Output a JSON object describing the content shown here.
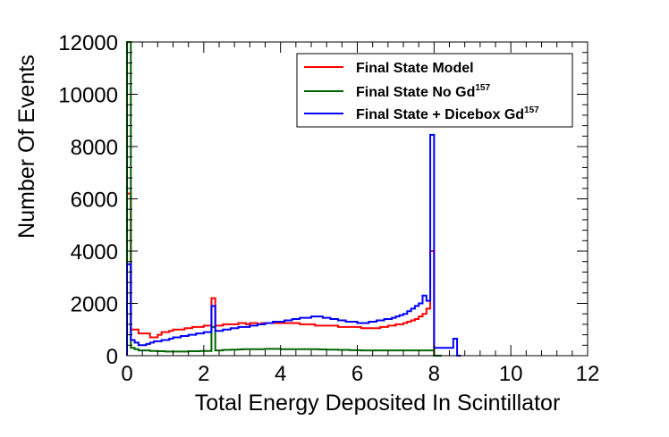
{
  "chart_data": {
    "type": "line",
    "title": "",
    "xlabel": "Total Energy Deposited In Scintillator",
    "ylabel": "Number Of Events",
    "xlim": [
      0,
      12
    ],
    "ylim": [
      0,
      12000
    ],
    "x_ticks": [
      "0",
      "2",
      "4",
      "6",
      "8",
      "10",
      "12"
    ],
    "y_ticks": [
      "0",
      "2000",
      "4000",
      "6000",
      "8000",
      "10000",
      "12000"
    ],
    "legend_position": "top-right",
    "bin_width": 0.1,
    "series": [
      {
        "name": "Final State Model",
        "color": "#ff0000",
        "bins": [
          [
            0.0,
            6200
          ],
          [
            0.1,
            1000
          ],
          [
            0.2,
            1000
          ],
          [
            0.3,
            850
          ],
          [
            0.4,
            850
          ],
          [
            0.5,
            850
          ],
          [
            0.6,
            700
          ],
          [
            0.7,
            700
          ],
          [
            0.8,
            800
          ],
          [
            0.9,
            900
          ],
          [
            1.0,
            900
          ],
          [
            1.1,
            950
          ],
          [
            1.2,
            1000
          ],
          [
            1.3,
            1000
          ],
          [
            1.4,
            1000
          ],
          [
            1.5,
            1050
          ],
          [
            1.6,
            1050
          ],
          [
            1.7,
            1100
          ],
          [
            1.8,
            1100
          ],
          [
            1.9,
            1100
          ],
          [
            2.0,
            1150
          ],
          [
            2.1,
            1150
          ],
          [
            2.2,
            2200
          ],
          [
            2.3,
            1150
          ],
          [
            2.4,
            1150
          ],
          [
            2.5,
            1200
          ],
          [
            2.6,
            1200
          ],
          [
            2.7,
            1200
          ],
          [
            2.8,
            1200
          ],
          [
            2.9,
            1250
          ],
          [
            3.0,
            1250
          ],
          [
            3.1,
            1200
          ],
          [
            3.2,
            1250
          ],
          [
            3.3,
            1250
          ],
          [
            3.4,
            1200
          ],
          [
            3.5,
            1250
          ],
          [
            3.6,
            1250
          ],
          [
            3.7,
            1250
          ],
          [
            3.8,
            1250
          ],
          [
            3.9,
            1250
          ],
          [
            4.0,
            1250
          ],
          [
            4.1,
            1250
          ],
          [
            4.2,
            1250
          ],
          [
            4.3,
            1250
          ],
          [
            4.4,
            1250
          ],
          [
            4.5,
            1200
          ],
          [
            4.6,
            1200
          ],
          [
            4.7,
            1200
          ],
          [
            4.8,
            1200
          ],
          [
            4.9,
            1150
          ],
          [
            5.0,
            1150
          ],
          [
            5.1,
            1150
          ],
          [
            5.2,
            1150
          ],
          [
            5.3,
            1150
          ],
          [
            5.4,
            1150
          ],
          [
            5.5,
            1100
          ],
          [
            5.6,
            1100
          ],
          [
            5.7,
            1100
          ],
          [
            5.8,
            1100
          ],
          [
            5.9,
            1100
          ],
          [
            6.0,
            1100
          ],
          [
            6.1,
            1050
          ],
          [
            6.2,
            1050
          ],
          [
            6.3,
            1050
          ],
          [
            6.4,
            1050
          ],
          [
            6.5,
            1050
          ],
          [
            6.6,
            1100
          ],
          [
            6.7,
            1100
          ],
          [
            6.8,
            1150
          ],
          [
            6.9,
            1150
          ],
          [
            7.0,
            1200
          ],
          [
            7.1,
            1200
          ],
          [
            7.2,
            1250
          ],
          [
            7.3,
            1300
          ],
          [
            7.4,
            1350
          ],
          [
            7.5,
            1400
          ],
          [
            7.6,
            1500
          ],
          [
            7.7,
            1600
          ],
          [
            7.8,
            1800
          ],
          [
            7.9,
            4000
          ],
          [
            8.0,
            0
          ],
          [
            8.1,
            0
          ]
        ]
      },
      {
        "name": "Final State No Gd157",
        "color": "#006400",
        "bins": [
          [
            0.0,
            12000
          ],
          [
            0.1,
            300
          ],
          [
            0.2,
            250
          ],
          [
            0.3,
            200
          ],
          [
            0.4,
            200
          ],
          [
            0.5,
            200
          ],
          [
            0.6,
            180
          ],
          [
            0.7,
            180
          ],
          [
            0.8,
            170
          ],
          [
            0.9,
            170
          ],
          [
            1.0,
            160
          ],
          [
            1.1,
            160
          ],
          [
            1.2,
            160
          ],
          [
            1.3,
            160
          ],
          [
            1.4,
            160
          ],
          [
            1.5,
            160
          ],
          [
            1.6,
            170
          ],
          [
            1.7,
            170
          ],
          [
            1.8,
            170
          ],
          [
            1.9,
            180
          ],
          [
            2.0,
            180
          ],
          [
            2.1,
            180
          ],
          [
            2.2,
            1100
          ],
          [
            2.3,
            200
          ],
          [
            2.4,
            200
          ],
          [
            2.5,
            220
          ],
          [
            2.6,
            220
          ],
          [
            2.7,
            230
          ],
          [
            2.8,
            230
          ],
          [
            2.9,
            240
          ],
          [
            3.0,
            250
          ],
          [
            3.1,
            250
          ],
          [
            3.2,
            250
          ],
          [
            3.3,
            250
          ],
          [
            3.4,
            250
          ],
          [
            3.5,
            250
          ],
          [
            3.6,
            260
          ],
          [
            3.7,
            260
          ],
          [
            3.8,
            260
          ],
          [
            3.9,
            260
          ],
          [
            4.0,
            250
          ],
          [
            4.1,
            250
          ],
          [
            4.2,
            250
          ],
          [
            4.3,
            250
          ],
          [
            4.4,
            250
          ],
          [
            4.5,
            250
          ],
          [
            4.6,
            250
          ],
          [
            4.7,
            250
          ],
          [
            4.8,
            250
          ],
          [
            4.9,
            250
          ],
          [
            5.0,
            240
          ],
          [
            5.1,
            240
          ],
          [
            5.2,
            230
          ],
          [
            5.3,
            230
          ],
          [
            5.4,
            230
          ],
          [
            5.5,
            220
          ],
          [
            5.6,
            220
          ],
          [
            5.7,
            220
          ],
          [
            5.8,
            210
          ],
          [
            5.9,
            210
          ],
          [
            6.0,
            210
          ],
          [
            6.1,
            200
          ],
          [
            6.2,
            200
          ],
          [
            6.3,
            200
          ],
          [
            6.4,
            200
          ],
          [
            6.5,
            200
          ],
          [
            6.6,
            200
          ],
          [
            6.7,
            200
          ],
          [
            6.8,
            200
          ],
          [
            6.9,
            200
          ],
          [
            7.0,
            200
          ],
          [
            7.1,
            200
          ],
          [
            7.2,
            200
          ],
          [
            7.3,
            200
          ],
          [
            7.4,
            200
          ],
          [
            7.5,
            200
          ],
          [
            7.6,
            200
          ],
          [
            7.7,
            200
          ],
          [
            7.8,
            200
          ],
          [
            7.9,
            200
          ],
          [
            8.0,
            0
          ],
          [
            8.1,
            0
          ]
        ]
      },
      {
        "name": "Final State + Dicebox Gd157",
        "color": "#0000ff",
        "bins": [
          [
            0.0,
            3500
          ],
          [
            0.1,
            600
          ],
          [
            0.2,
            500
          ],
          [
            0.3,
            400
          ],
          [
            0.4,
            400
          ],
          [
            0.5,
            450
          ],
          [
            0.6,
            500
          ],
          [
            0.7,
            550
          ],
          [
            0.8,
            550
          ],
          [
            0.9,
            600
          ],
          [
            1.0,
            600
          ],
          [
            1.1,
            650
          ],
          [
            1.2,
            700
          ],
          [
            1.3,
            700
          ],
          [
            1.4,
            750
          ],
          [
            1.5,
            750
          ],
          [
            1.6,
            800
          ],
          [
            1.7,
            800
          ],
          [
            1.8,
            850
          ],
          [
            1.9,
            850
          ],
          [
            2.0,
            900
          ],
          [
            2.1,
            900
          ],
          [
            2.2,
            1900
          ],
          [
            2.3,
            950
          ],
          [
            2.4,
            950
          ],
          [
            2.5,
            1000
          ],
          [
            2.6,
            1000
          ],
          [
            2.7,
            1050
          ],
          [
            2.8,
            1050
          ],
          [
            2.9,
            1100
          ],
          [
            3.0,
            1100
          ],
          [
            3.1,
            1100
          ],
          [
            3.2,
            1150
          ],
          [
            3.3,
            1150
          ],
          [
            3.4,
            1200
          ],
          [
            3.5,
            1200
          ],
          [
            3.6,
            1250
          ],
          [
            3.7,
            1250
          ],
          [
            3.8,
            1300
          ],
          [
            3.9,
            1300
          ],
          [
            4.0,
            1300
          ],
          [
            4.1,
            1350
          ],
          [
            4.2,
            1350
          ],
          [
            4.3,
            1400
          ],
          [
            4.4,
            1400
          ],
          [
            4.5,
            1450
          ],
          [
            4.6,
            1450
          ],
          [
            4.7,
            1450
          ],
          [
            4.8,
            1500
          ],
          [
            4.9,
            1500
          ],
          [
            5.0,
            1500
          ],
          [
            5.1,
            1450
          ],
          [
            5.2,
            1450
          ],
          [
            5.3,
            1400
          ],
          [
            5.4,
            1400
          ],
          [
            5.5,
            1350
          ],
          [
            5.6,
            1350
          ],
          [
            5.7,
            1300
          ],
          [
            5.8,
            1300
          ],
          [
            5.9,
            1300
          ],
          [
            6.0,
            1250
          ],
          [
            6.1,
            1250
          ],
          [
            6.2,
            1250
          ],
          [
            6.3,
            1300
          ],
          [
            6.4,
            1300
          ],
          [
            6.5,
            1350
          ],
          [
            6.6,
            1350
          ],
          [
            6.7,
            1400
          ],
          [
            6.8,
            1400
          ],
          [
            6.9,
            1450
          ],
          [
            7.0,
            1500
          ],
          [
            7.1,
            1550
          ],
          [
            7.2,
            1600
          ],
          [
            7.3,
            1700
          ],
          [
            7.4,
            1800
          ],
          [
            7.5,
            1900
          ],
          [
            7.6,
            2000
          ],
          [
            7.7,
            2300
          ],
          [
            7.8,
            2100
          ],
          [
            7.9,
            8450
          ],
          [
            8.0,
            300
          ],
          [
            8.1,
            300
          ],
          [
            8.2,
            300
          ],
          [
            8.3,
            300
          ],
          [
            8.4,
            300
          ],
          [
            8.5,
            650
          ],
          [
            8.6,
            0
          ]
        ]
      }
    ]
  },
  "legend": {
    "items": [
      {
        "text": "Final State Model",
        "sup": ""
      },
      {
        "text": "Final State No Gd",
        "sup": "157"
      },
      {
        "text": "Final State + Dicebox Gd",
        "sup": "157"
      }
    ]
  }
}
